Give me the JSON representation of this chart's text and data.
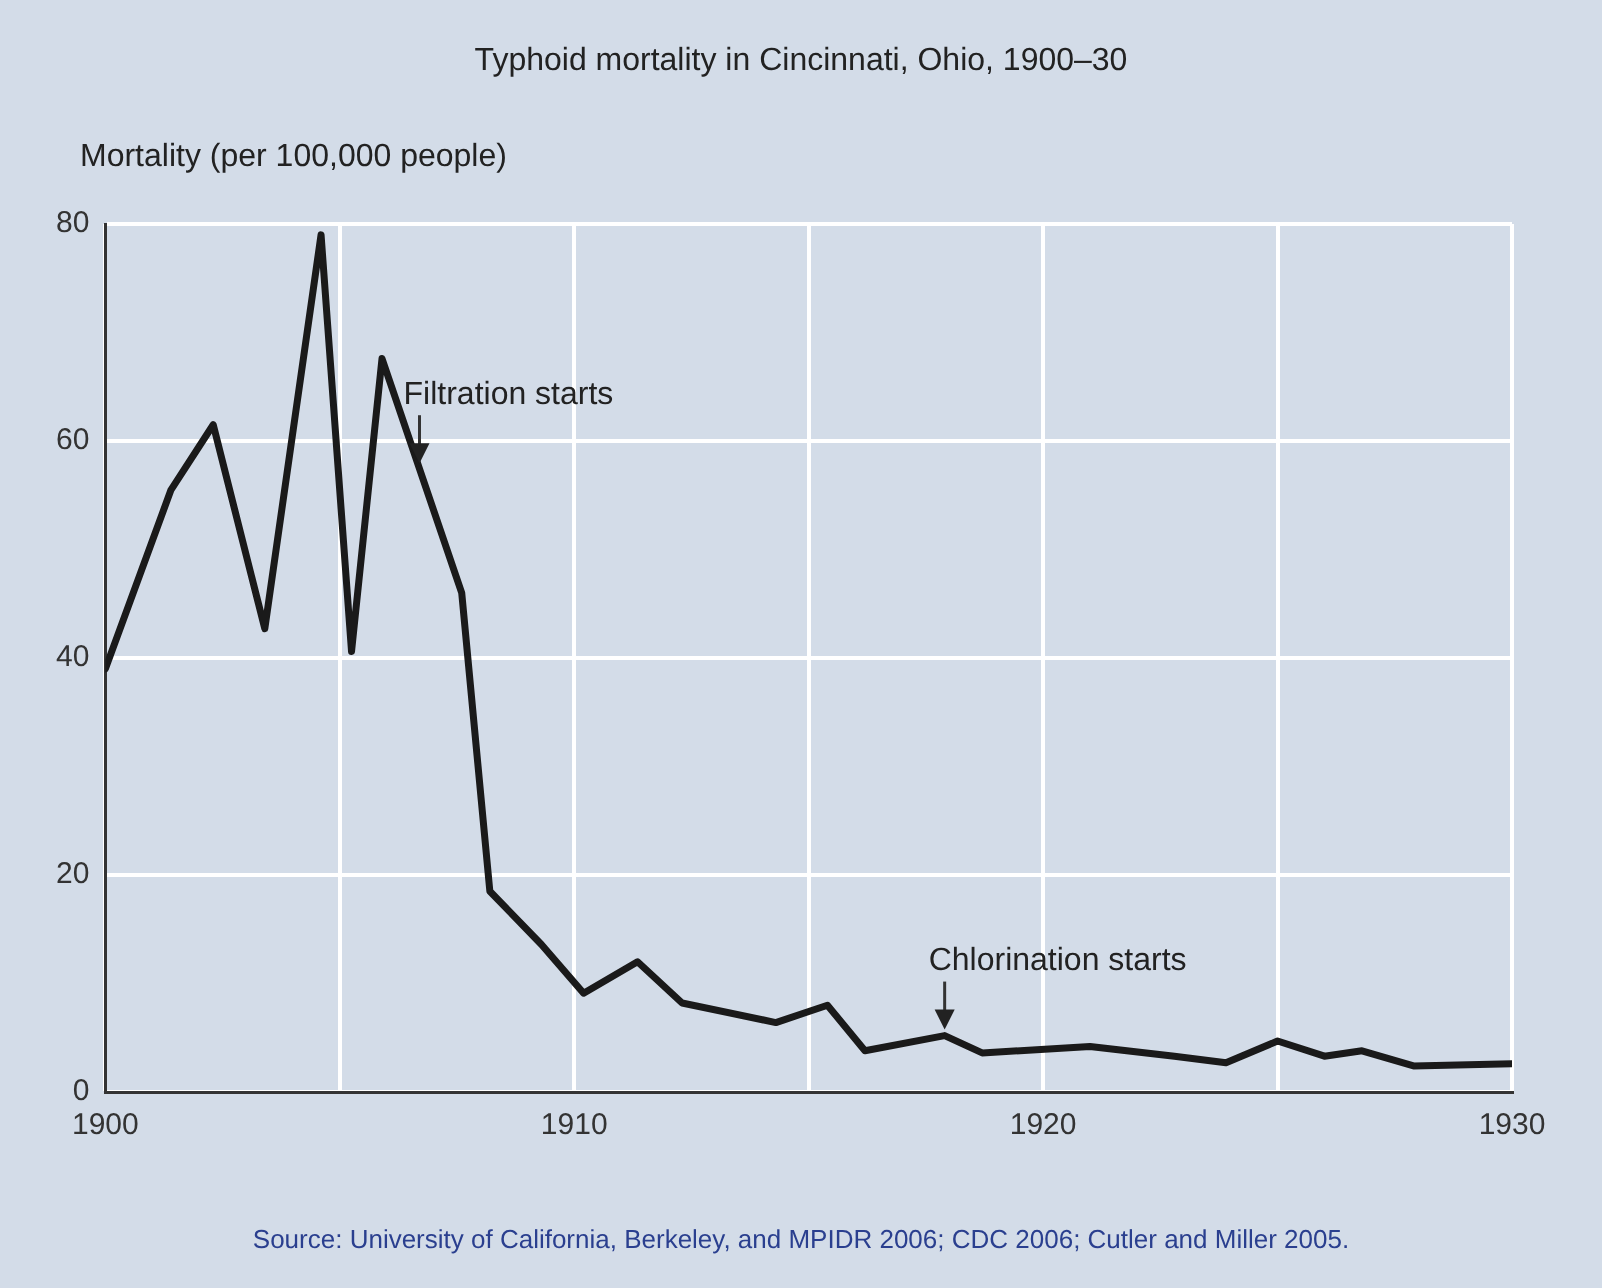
{
  "chart_data": {
    "type": "line",
    "title": "Typhoid mortality in Cincinnati, Ohio, 1900–30",
    "ylabel": "Mortality (per 100,000 people)",
    "series": [
      {
        "color": "#1a1a1a",
        "x": [
          1900,
          1901.4,
          1902.3,
          1903.4,
          1904.6,
          1905.25,
          1905.9,
          1907.6,
          1908.2,
          1909.3,
          1910.2,
          1911.35,
          1912.3,
          1914.3,
          1915.4,
          1916.2,
          1917.9,
          1918.7,
          1921.0,
          1922.8,
          1923.9,
          1925.0,
          1926.0,
          1926.8,
          1927.9,
          1930
        ],
        "values": [
          39,
          55.5,
          61.5,
          42.7,
          79,
          40.6,
          67.6,
          46,
          18.5,
          13.6,
          9.1,
          12,
          8.2,
          6.4,
          8,
          3.8,
          5.2,
          3.6,
          4.2,
          3.3,
          2.7,
          4.7,
          3.3,
          3.8,
          2.4,
          2.6
        ]
      }
    ],
    "xlim": [
      1900,
      1930
    ],
    "xticks": [
      1900,
      {
        "value": 1905,
        "label": null
      },
      1910,
      {
        "value": 1915,
        "label": null
      },
      1920,
      {
        "value": 1925,
        "label": null
      },
      1930
    ],
    "ylim": [
      0,
      80
    ],
    "yticks": [
      0,
      20,
      40,
      60,
      80
    ],
    "grid": true,
    "legend": false,
    "marker": "none",
    "line_style": "solid",
    "annotations": [
      {
        "text": "Filtration starts",
        "x": 1906.7,
        "y": 57.4
      },
      {
        "text": "Chlorination starts",
        "x": 1917.9,
        "y": 5.2
      },
      "Source: University of California, Berkeley, and MPIDR 2006; CDC 2006; Cutler and Miller 2005."
    ]
  }
}
